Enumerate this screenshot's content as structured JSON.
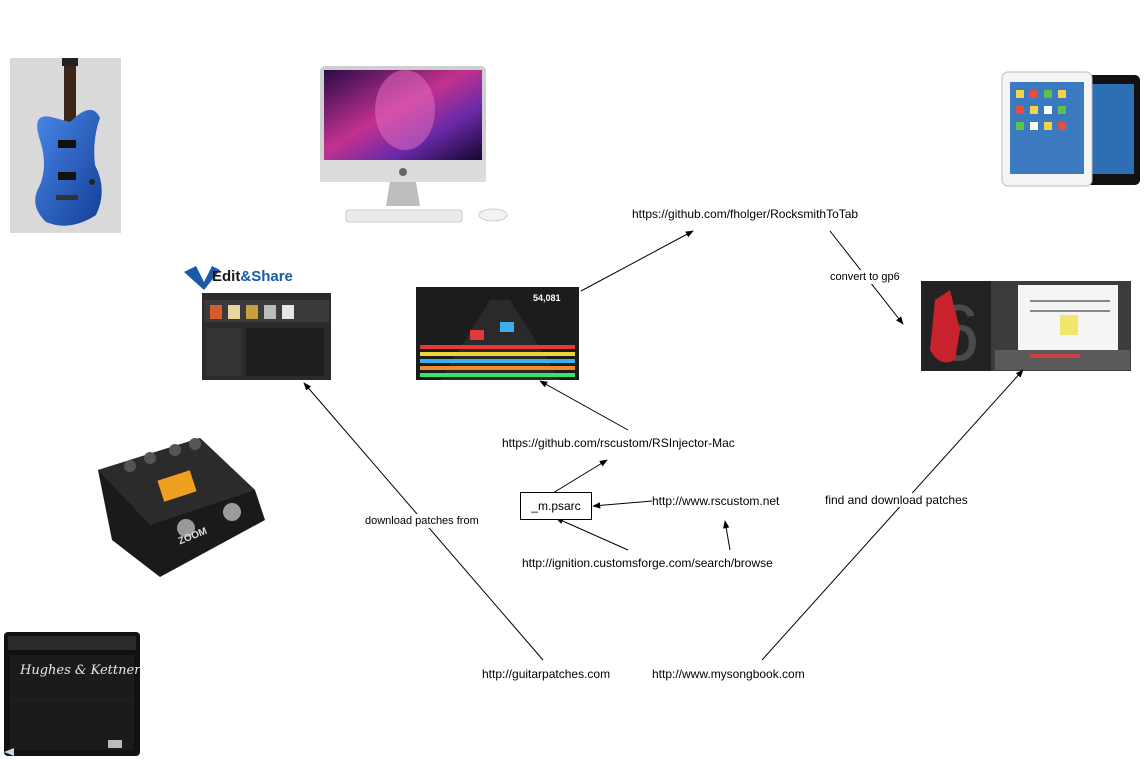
{
  "nodes": {
    "rocksmith_to_tab": "https://github.com/fholger/RocksmithToTab",
    "rsinjector": "https://github.com/rscustom/RSInjector-Mac",
    "psarc": "_m.psarc",
    "rscustom": "http://www.rscustom.net",
    "customsforge": "http://ignition.customsforge.com/search/browse",
    "guitarpatches": "http://guitarpatches.com",
    "mysongbook": "http://www.mysongbook.com"
  },
  "edges": {
    "convert": "convert to gp6",
    "download_patches_from": "download patches from",
    "find_download": "find and download patches"
  },
  "edit_share": {
    "word1": "Edit",
    "amp": "&",
    "word2": "Share"
  },
  "rocksmith_score": "54,081",
  "amp_brand": "Hughes & Kettner",
  "pedal_brand": "ZOOM",
  "colors": {
    "guitar_blue": "#1f5bc4",
    "edit_share_blue": "#1a5aa6",
    "line": "#000000"
  }
}
